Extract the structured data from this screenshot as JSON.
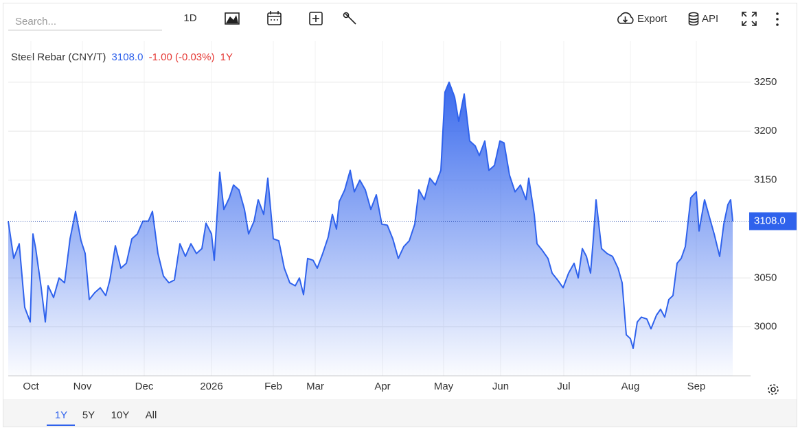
{
  "toolbar": {
    "search": "Search...",
    "interval": "1D",
    "export": "Export",
    "api": "API"
  },
  "quote": {
    "name": "Steel Rebar (CNY/T)",
    "price": "3108.0",
    "change": "-1.00 (-0.03%)",
    "period": "1Y"
  },
  "ranges": [
    "1Y",
    "5Y",
    "10Y",
    "All"
  ],
  "chart_data": {
    "type": "line",
    "color": "#2f62ec",
    "grid": true,
    "x": [
      12,
      20,
      28,
      36,
      44,
      48,
      52,
      60,
      66,
      70,
      78,
      86,
      94,
      102,
      110,
      118,
      124,
      130,
      138,
      146,
      154,
      160,
      168,
      176,
      184,
      192,
      200,
      208,
      216,
      222,
      230,
      238,
      246,
      254,
      262,
      270,
      278,
      286,
      294,
      300,
      308,
      312,
      320,
      326,
      334,
      340,
      348,
      356,
      362,
      370,
      376,
      384,
      390,
      398,
      406,
      414,
      422,
      430,
      436,
      442,
      448,
      456,
      462,
      470,
      478,
      484,
      490,
      494,
      502,
      510,
      516,
      524,
      532,
      540,
      548,
      556,
      564,
      572,
      580,
      588,
      596,
      604,
      610,
      618,
      626,
      634,
      642,
      648,
      654,
      662,
      668,
      676,
      684,
      692,
      698,
      706,
      712,
      720,
      728,
      734,
      742,
      750,
      758,
      766,
      770,
      778,
      782,
      790,
      798,
      804,
      812,
      820,
      828,
      836,
      842,
      848,
      854,
      860,
      864,
      868,
      876,
      884,
      892,
      900,
      906,
      912,
      918,
      922,
      928,
      934,
      942,
      948,
      956,
      962,
      968,
      974,
      980,
      986,
      992,
      998,
      1006,
      1014,
      1018,
      1026,
      1032,
      1040,
      1048,
      1054,
      1060,
      1064,
      1067
    ],
    "values": [
      3108,
      3070,
      3085,
      3020,
      3005,
      3095,
      3080,
      3040,
      3005,
      3042,
      3030,
      3050,
      3045,
      3090,
      3118,
      3088,
      3075,
      3028,
      3035,
      3040,
      3032,
      3048,
      3083,
      3060,
      3065,
      3090,
      3095,
      3108,
      3108,
      3118,
      3075,
      3052,
      3045,
      3048,
      3085,
      3072,
      3085,
      3075,
      3080,
      3106,
      3095,
      3068,
      3158,
      3120,
      3132,
      3145,
      3140,
      3120,
      3095,
      3108,
      3130,
      3115,
      3152,
      3090,
      3088,
      3060,
      3045,
      3042,
      3050,
      3033,
      3070,
      3068,
      3060,
      3075,
      3092,
      3115,
      3100,
      3128,
      3140,
      3160,
      3138,
      3150,
      3140,
      3120,
      3135,
      3105,
      3104,
      3090,
      3070,
      3082,
      3088,
      3105,
      3140,
      3130,
      3152,
      3145,
      3160,
      3240,
      3250,
      3235,
      3210,
      3238,
      3190,
      3185,
      3175,
      3190,
      3160,
      3165,
      3190,
      3188,
      3155,
      3138,
      3145,
      3130,
      3152,
      3115,
      3085,
      3078,
      3070,
      3055,
      3048,
      3040,
      3055,
      3065,
      3050,
      3080,
      3072,
      3055,
      3090,
      3130,
      3080,
      3075,
      3072,
      3060,
      3045,
      2992,
      2988,
      2978,
      3005,
      3010,
      3008,
      2998,
      3012,
      3018,
      3010,
      3028,
      3032,
      3065,
      3070,
      3082,
      3132,
      3138,
      3098,
      3130,
      3115,
      3095,
      3072,
      3105,
      3125,
      3130,
      3108
    ],
    "xlim": [
      12,
      1093
    ],
    "xticks": [
      {
        "value": 45,
        "label": "Oct"
      },
      {
        "value": 120,
        "label": "Nov"
      },
      {
        "value": 210,
        "label": "Dec"
      },
      {
        "value": 308,
        "label": "2026"
      },
      {
        "value": 398,
        "label": "Feb"
      },
      {
        "value": 459,
        "label": "Mar"
      },
      {
        "value": 557,
        "label": "Apr"
      },
      {
        "value": 646,
        "label": "May"
      },
      {
        "value": 729,
        "label": "Jun"
      },
      {
        "value": 821,
        "label": "Jul"
      },
      {
        "value": 918,
        "label": "Aug"
      },
      {
        "value": 1014,
        "label": "Sep"
      }
    ],
    "ylim": [
      2950,
      3292
    ],
    "yticks": [
      3000,
      3050,
      3150,
      3200,
      3250
    ]
  }
}
